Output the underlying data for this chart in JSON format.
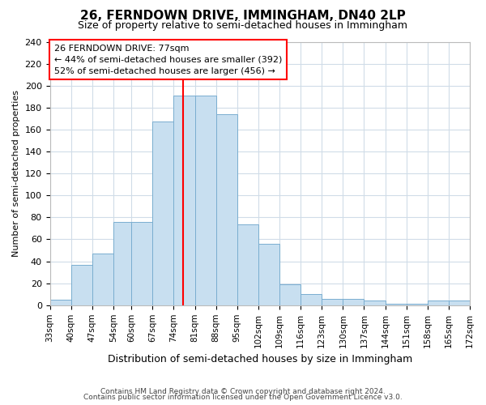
{
  "title": "26, FERNDOWN DRIVE, IMMINGHAM, DN40 2LP",
  "subtitle": "Size of property relative to semi-detached houses in Immingham",
  "xlabel": "Distribution of semi-detached houses by size in Immingham",
  "ylabel": "Number of semi-detached properties",
  "footer_line1": "Contains HM Land Registry data © Crown copyright and database right 2024.",
  "footer_line2": "Contains public sector information licensed under the Open Government Licence v3.0.",
  "annotation_title": "26 FERNDOWN DRIVE: 77sqm",
  "annotation_line1": "← 44% of semi-detached houses are smaller (392)",
  "annotation_line2": "52% of semi-detached houses are larger (456) →",
  "property_size": 77,
  "bar_color": "#c8dff0",
  "bar_edge_color": "#7aaed0",
  "vline_color": "red",
  "bin_edges": [
    33,
    40,
    47,
    54,
    60,
    67,
    74,
    81,
    88,
    95,
    102,
    109,
    116,
    123,
    130,
    137,
    144,
    151,
    158,
    165,
    172
  ],
  "bin_labels": [
    "33sqm",
    "40sqm",
    "47sqm",
    "54sqm",
    "60sqm",
    "67sqm",
    "74sqm",
    "81sqm",
    "88sqm",
    "95sqm",
    "102sqm",
    "109sqm",
    "116sqm",
    "123sqm",
    "130sqm",
    "137sqm",
    "144sqm",
    "151sqm",
    "158sqm",
    "165sqm",
    "172sqm"
  ],
  "bar_counts": [
    5,
    37,
    47,
    76,
    76,
    167,
    191,
    191,
    174,
    74,
    56,
    19,
    10,
    6,
    6,
    4,
    1,
    1,
    4,
    4
  ],
  "ylim": [
    0,
    240
  ],
  "yticks": [
    0,
    20,
    40,
    60,
    80,
    100,
    120,
    140,
    160,
    180,
    200,
    220,
    240
  ],
  "background_color": "#ffffff",
  "grid_color": "#d0dce8",
  "annotation_border_color": "red"
}
